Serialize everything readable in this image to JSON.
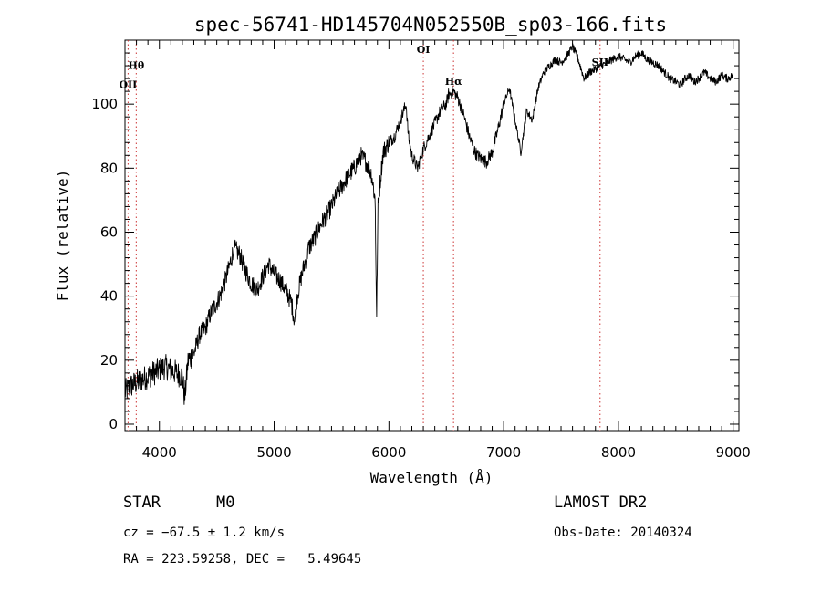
{
  "chart_data": {
    "type": "line",
    "title": "spec-56741-HD145704N052550B_sp03-166.fits",
    "xlabel": "Wavelength (Å)",
    "ylabel": "Flux (relative)",
    "xlim": [
      3700,
      9050
    ],
    "ylim": [
      -2,
      120
    ],
    "xticks": [
      4000,
      5000,
      6000,
      7000,
      8000,
      9000
    ],
    "yticks": [
      0,
      20,
      40,
      60,
      80,
      100
    ],
    "grid": false,
    "spectrum_anchors": {
      "x": [
        3700,
        3750,
        3800,
        3850,
        3900,
        3950,
        4000,
        4050,
        4100,
        4150,
        4200,
        4220,
        4250,
        4300,
        4350,
        4400,
        4450,
        4500,
        4550,
        4600,
        4650,
        4700,
        4750,
        4800,
        4850,
        4900,
        4950,
        5000,
        5050,
        5100,
        5150,
        5180,
        5200,
        5250,
        5300,
        5350,
        5400,
        5450,
        5500,
        5550,
        5600,
        5650,
        5700,
        5750,
        5800,
        5850,
        5880,
        5893,
        5905,
        5930,
        5950,
        6000,
        6050,
        6100,
        6150,
        6170,
        6200,
        6250,
        6300,
        6350,
        6400,
        6450,
        6500,
        6520,
        6563,
        6600,
        6650,
        6700,
        6750,
        6800,
        6850,
        6900,
        6950,
        7000,
        7050,
        7100,
        7150,
        7200,
        7250,
        7300,
        7350,
        7400,
        7450,
        7500,
        7550,
        7600,
        7650,
        7700,
        7750,
        7800,
        7850,
        7900,
        7950,
        8000,
        8050,
        8100,
        8150,
        8200,
        8250,
        8300,
        8350,
        8400,
        8450,
        8500,
        8542,
        8580,
        8620,
        8662,
        8700,
        8750,
        8800,
        8850,
        8900,
        8950,
        9000
      ],
      "y": [
        10,
        12,
        13,
        14,
        15,
        16,
        17,
        18,
        17,
        16,
        15,
        8,
        20,
        22,
        28,
        30,
        35,
        38,
        42,
        48,
        55,
        53,
        48,
        44,
        42,
        46,
        50,
        47,
        45,
        42,
        38,
        32,
        40,
        48,
        55,
        58,
        62,
        65,
        68,
        72,
        75,
        78,
        80,
        84,
        82,
        78,
        70,
        33,
        68,
        78,
        85,
        88,
        90,
        95,
        100,
        90,
        84,
        80,
        86,
        90,
        94,
        98,
        100,
        103,
        104,
        102,
        97,
        90,
        85,
        83,
        82,
        85,
        92,
        100,
        105,
        95,
        85,
        98,
        95,
        105,
        110,
        112,
        114,
        113,
        115,
        118,
        114,
        108,
        110,
        111,
        112,
        113,
        114,
        115,
        114,
        113,
        115,
        116,
        114,
        113,
        112,
        110,
        108,
        107,
        106,
        108,
        109,
        107,
        108,
        110,
        108,
        107,
        109,
        108,
        109
      ]
    },
    "spectral_lines": [
      {
        "label": "OII",
        "x": 3727,
        "y": 105
      },
      {
        "label": "Hθ",
        "x": 3798,
        "y": 111
      },
      {
        "label": "OI",
        "x": 6300,
        "y": 116
      },
      {
        "label": "Hα",
        "x": 6563,
        "y": 106
      },
      {
        "label": "SII",
        "x": 7840,
        "y": 112
      }
    ]
  },
  "info": {
    "class_label": "STAR",
    "subclass": "M0",
    "cz": "cz = −67.5 ± 1.2 km/s",
    "coords": "RA = 223.59258, DEC =   5.49645",
    "survey": "LAMOST DR2",
    "obs_date": "Obs-Date: 20140324"
  }
}
